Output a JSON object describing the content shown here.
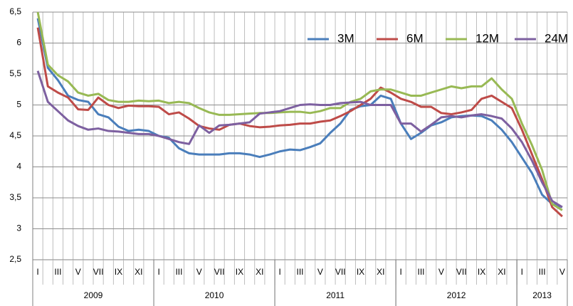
{
  "chart_data": {
    "type": "line",
    "categories": [
      "I",
      null,
      "III",
      null,
      "V",
      null,
      "VII",
      null,
      "IX",
      null,
      "XI",
      null,
      "I",
      null,
      "III",
      null,
      "V",
      null,
      "VII",
      null,
      "IX",
      null,
      "XI",
      null,
      "I",
      null,
      "III",
      null,
      "V",
      null,
      "VII",
      null,
      "IX",
      null,
      "XI",
      null,
      "I",
      null,
      "III",
      null,
      "V",
      null,
      "VII",
      null,
      "IX",
      null,
      "XI",
      null,
      "I",
      null,
      "III",
      null,
      "V"
    ],
    "groups": [
      {
        "label": "2009",
        "size": 12
      },
      {
        "label": "2010",
        "size": 12
      },
      {
        "label": "2011",
        "size": 12
      },
      {
        "label": "2012",
        "size": 12
      },
      {
        "label": "2013",
        "size": 5
      }
    ],
    "ylim": [
      2.5,
      6.5
    ],
    "yticks": [
      {
        "value": 2.5,
        "label": "2,5"
      },
      3,
      {
        "value": 3.5,
        "label": "3,5"
      },
      4,
      {
        "value": 4.5,
        "label": "4,5"
      },
      5,
      {
        "value": 5.5,
        "label": "5,5"
      },
      6,
      {
        "value": 6.5,
        "label": "6,5"
      }
    ],
    "grid": true,
    "legend": "top-right",
    "series": [
      {
        "name": "3M",
        "color": "#4a7ebb",
        "values": [
          6.4,
          5.6,
          5.4,
          5.15,
          5.08,
          5.05,
          4.85,
          4.8,
          4.65,
          4.58,
          4.6,
          4.58,
          4.5,
          4.47,
          4.3,
          4.22,
          4.2,
          4.2,
          4.2,
          4.22,
          4.22,
          4.2,
          4.16,
          4.2,
          4.25,
          4.28,
          4.27,
          4.32,
          4.38,
          4.55,
          4.7,
          4.92,
          4.98,
          5.0,
          5.15,
          5.1,
          4.7,
          4.45,
          4.55,
          4.67,
          4.72,
          4.8,
          4.82,
          4.83,
          4.82,
          4.75,
          4.6,
          4.4,
          4.15,
          3.9,
          3.55,
          3.4,
          3.35
        ]
      },
      {
        "name": "6M",
        "color": "#be4b48",
        "values": [
          6.25,
          5.3,
          5.2,
          5.12,
          4.93,
          4.92,
          5.12,
          5.0,
          4.95,
          4.99,
          4.98,
          4.98,
          4.97,
          4.85,
          4.88,
          4.78,
          4.66,
          4.62,
          4.6,
          4.68,
          4.7,
          4.66,
          4.64,
          4.65,
          4.67,
          4.68,
          4.7,
          4.7,
          4.73,
          4.75,
          4.82,
          4.9,
          5.0,
          5.1,
          5.28,
          5.2,
          5.1,
          5.05,
          4.97,
          4.97,
          4.87,
          4.85,
          4.88,
          4.92,
          5.1,
          5.15,
          5.05,
          4.95,
          4.6,
          4.2,
          3.8,
          3.35,
          3.2
        ]
      },
      {
        "name": "12M",
        "color": "#98b954",
        "values": [
          6.5,
          5.65,
          5.48,
          5.38,
          5.2,
          5.15,
          5.18,
          5.08,
          5.05,
          5.05,
          5.07,
          5.06,
          5.07,
          5.03,
          5.05,
          5.03,
          4.95,
          4.88,
          4.84,
          4.84,
          4.85,
          4.86,
          4.87,
          4.87,
          4.88,
          4.89,
          4.89,
          4.87,
          4.9,
          4.95,
          4.95,
          5.05,
          5.1,
          5.22,
          5.25,
          5.25,
          5.2,
          5.15,
          5.15,
          5.2,
          5.25,
          5.3,
          5.27,
          5.3,
          5.3,
          5.43,
          5.25,
          5.1,
          4.7,
          4.35,
          3.95,
          3.4,
          3.3
        ]
      },
      {
        "name": "24M",
        "color": "#7d60a0",
        "values": [
          5.55,
          5.05,
          4.9,
          4.75,
          4.66,
          4.6,
          4.62,
          4.58,
          4.57,
          4.55,
          4.53,
          4.53,
          4.5,
          4.45,
          4.4,
          4.37,
          4.67,
          4.55,
          4.67,
          4.68,
          4.7,
          4.72,
          4.86,
          4.88,
          4.9,
          4.95,
          5.0,
          5.01,
          5.0,
          5.0,
          5.03,
          5.04,
          5.05,
          5.0,
          5.0,
          5.0,
          4.7,
          4.7,
          4.57,
          4.68,
          4.8,
          4.82,
          4.8,
          4.83,
          4.85,
          4.82,
          4.78,
          4.62,
          4.4,
          4.1,
          3.75,
          3.45,
          3.35
        ]
      }
    ]
  }
}
